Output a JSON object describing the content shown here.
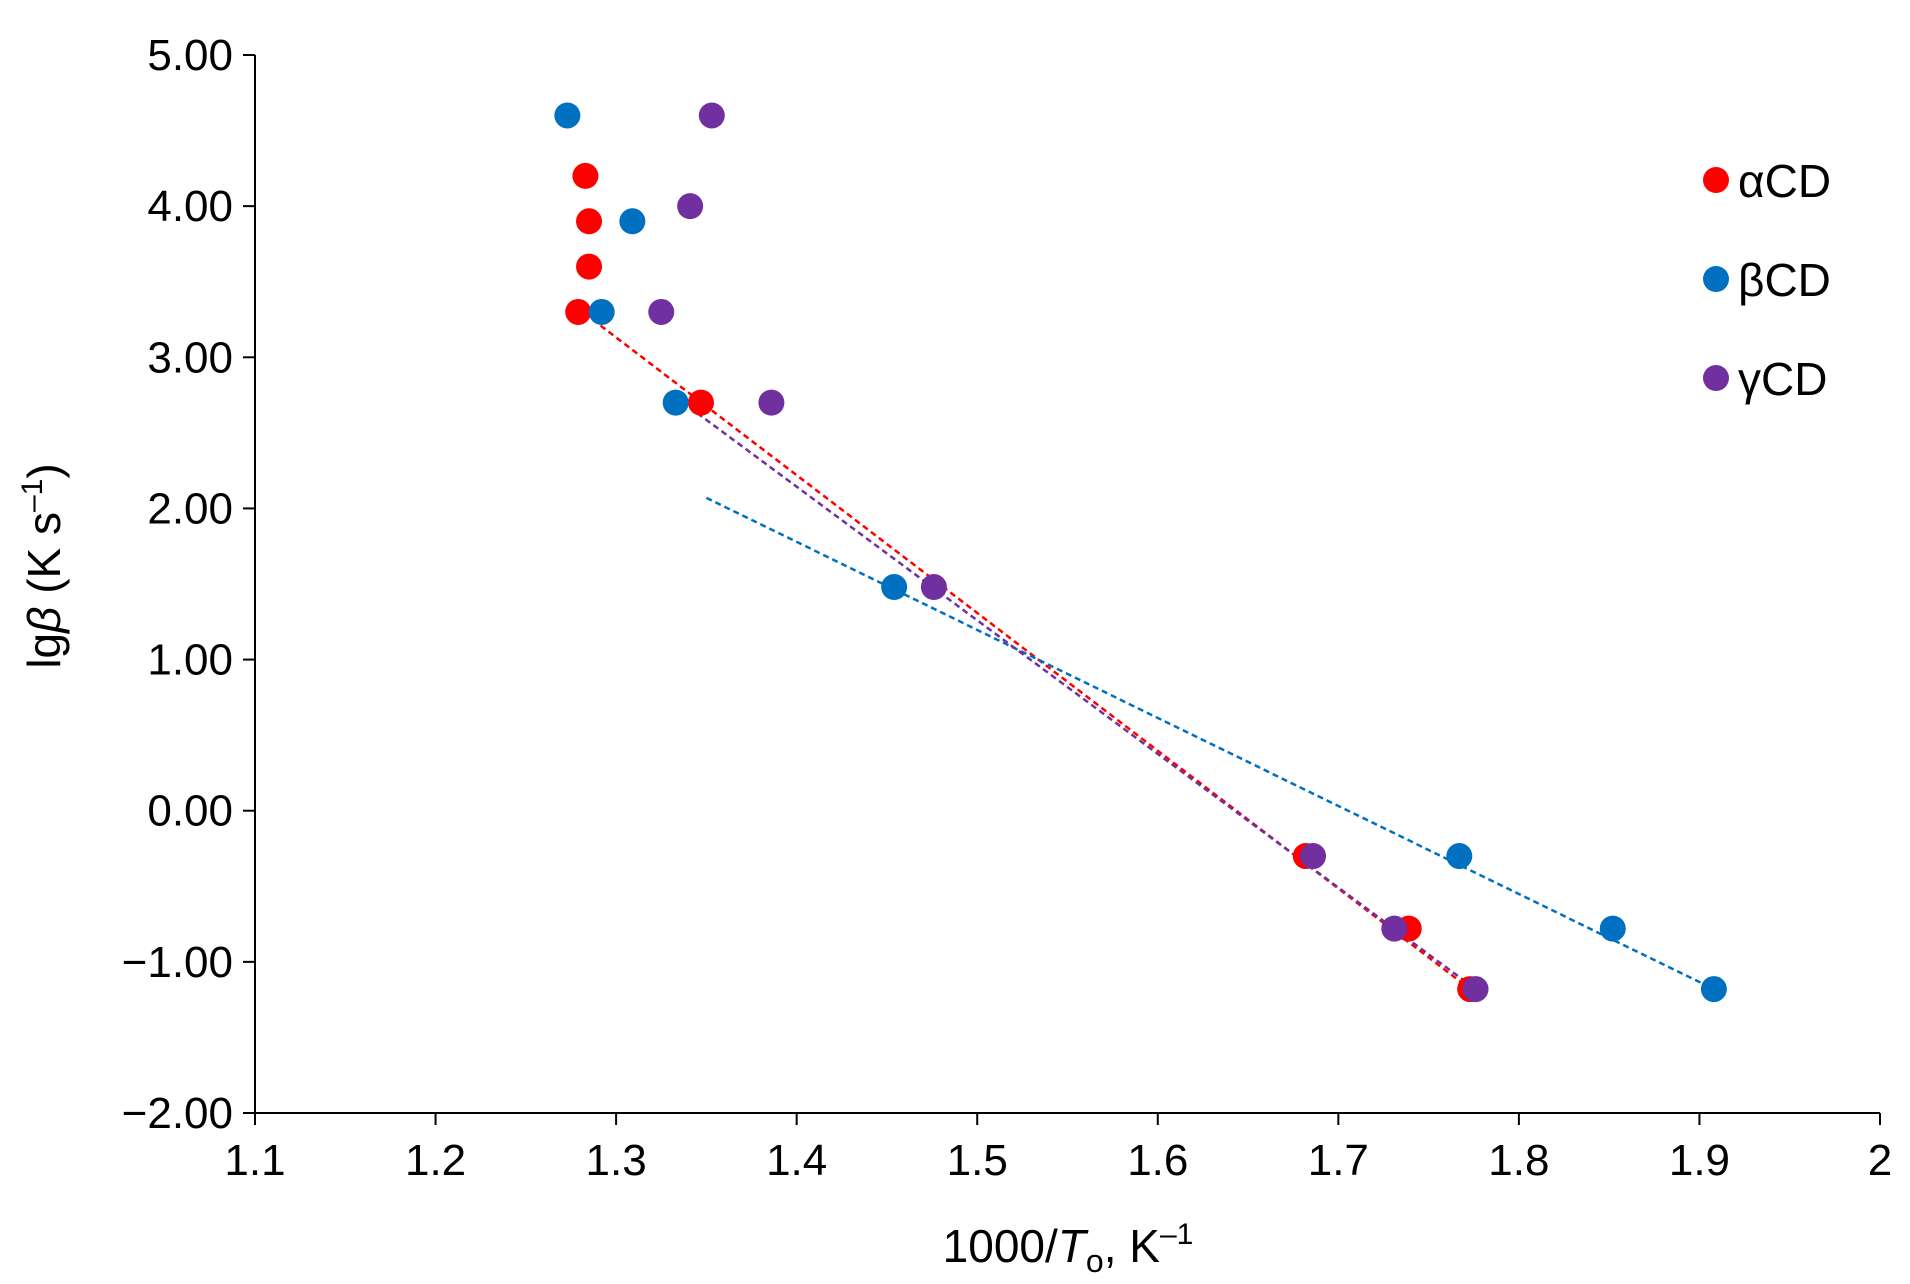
{
  "chart_data": {
    "type": "scatter",
    "title": "",
    "xlabel": {
      "prefix": "1000/",
      "var": "T",
      "sub": "o",
      "unit": ", K",
      "exp": "–1"
    },
    "ylabel": {
      "prefix": "lg",
      "var": "β",
      "unit": " (K s",
      "exp": "–1",
      "close": ")"
    },
    "xlim": [
      1.1,
      2.0
    ],
    "ylim": [
      -2.0,
      5.0
    ],
    "x_ticks": [
      "1.1",
      "1.2",
      "1.3",
      "1.4",
      "1.5",
      "1.6",
      "1.7",
      "1.8",
      "1.9",
      "2"
    ],
    "y_ticks": [
      "5.00",
      "4.00",
      "3.00",
      "2.00",
      "1.00",
      "0.00",
      "−1.00",
      "−2.00"
    ],
    "grid": false,
    "legend_position": "top-right",
    "series": [
      {
        "name": "αCD",
        "color": "#ff0000",
        "points": [
          [
            1.283,
            4.2
          ],
          [
            1.285,
            3.9
          ],
          [
            1.285,
            3.6
          ],
          [
            1.279,
            3.3
          ],
          [
            1.347,
            2.7
          ],
          [
            1.682,
            -0.3
          ],
          [
            1.739,
            -0.78
          ],
          [
            1.773,
            -1.18
          ]
        ],
        "trendline": [
          [
            1.287,
            3.25
          ],
          [
            1.773,
            -1.18
          ]
        ]
      },
      {
        "name": "βCD",
        "color": "#0070c0",
        "points": [
          [
            1.273,
            4.6
          ],
          [
            1.309,
            3.9
          ],
          [
            1.292,
            3.3
          ],
          [
            1.333,
            2.7
          ],
          [
            1.454,
            1.48
          ],
          [
            1.767,
            -0.3
          ],
          [
            1.852,
            -0.78
          ],
          [
            1.908,
            -1.18
          ]
        ],
        "trendline": [
          [
            1.35,
            2.07
          ],
          [
            1.908,
            -1.18
          ]
        ]
      },
      {
        "name": "γCD",
        "color": "#7030a0",
        "points": [
          [
            1.353,
            4.6
          ],
          [
            1.341,
            4.0
          ],
          [
            1.325,
            3.3
          ],
          [
            1.386,
            2.7
          ],
          [
            1.476,
            1.48
          ],
          [
            1.686,
            -0.3
          ],
          [
            1.731,
            -0.78
          ],
          [
            1.776,
            -1.18
          ]
        ],
        "trendline": [
          [
            1.345,
            2.63
          ],
          [
            1.776,
            -1.18
          ]
        ]
      }
    ]
  }
}
